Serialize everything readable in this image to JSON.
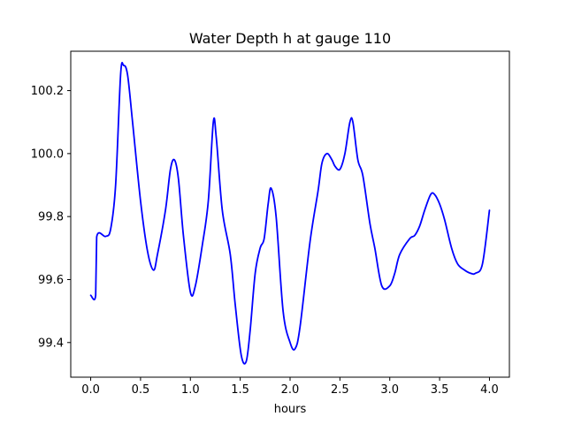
{
  "chart_data": {
    "type": "line",
    "title": "Water Depth h at gauge 110",
    "xlabel": "hours",
    "ylabel": "",
    "xlim": [
      -0.2,
      4.2
    ],
    "ylim": [
      99.29,
      100.325
    ],
    "xticks": [
      0.0,
      0.5,
      1.0,
      1.5,
      2.0,
      2.5,
      3.0,
      3.5,
      4.0
    ],
    "xtick_labels": [
      "0.0",
      "0.5",
      "1.0",
      "1.5",
      "2.0",
      "2.5",
      "3.0",
      "3.5",
      "4.0"
    ],
    "yticks": [
      99.4,
      99.6,
      99.8,
      100.0,
      100.2
    ],
    "ytick_labels": [
      "99.4",
      "99.6",
      "99.8",
      "100.0",
      "100.2"
    ],
    "grid": false,
    "series": [
      {
        "color": "#0000ff",
        "x": [
          0.0,
          0.05,
          0.06,
          0.15,
          0.2,
          0.25,
          0.3,
          0.33,
          0.37,
          0.42,
          0.5,
          0.57,
          0.63,
          0.67,
          0.75,
          0.8,
          0.84,
          0.88,
          0.93,
          1.0,
          1.05,
          1.12,
          1.18,
          1.23,
          1.26,
          1.32,
          1.4,
          1.45,
          1.51,
          1.56,
          1.6,
          1.65,
          1.7,
          1.74,
          1.78,
          1.81,
          1.86,
          1.93,
          2.0,
          2.05,
          2.1,
          2.2,
          2.28,
          2.32,
          2.37,
          2.42,
          2.45,
          2.5,
          2.55,
          2.6,
          2.63,
          2.68,
          2.73,
          2.8,
          2.85,
          2.92,
          3.0,
          3.05,
          3.1,
          3.2,
          3.25,
          3.3,
          3.35,
          3.41,
          3.45,
          3.5,
          3.55,
          3.62,
          3.68,
          3.75,
          3.81,
          3.86,
          3.93,
          4.0
        ],
        "y": [
          99.55,
          99.55,
          99.735,
          99.737,
          99.76,
          99.9,
          100.25,
          100.28,
          100.25,
          100.1,
          99.85,
          99.69,
          99.63,
          99.68,
          99.82,
          99.95,
          99.98,
          99.92,
          99.74,
          99.56,
          99.58,
          99.71,
          99.85,
          100.1,
          100.05,
          99.82,
          99.68,
          99.52,
          99.36,
          99.34,
          99.44,
          99.62,
          99.7,
          99.73,
          99.84,
          99.89,
          99.8,
          99.5,
          99.4,
          99.38,
          99.45,
          99.72,
          99.88,
          99.97,
          100.0,
          99.98,
          99.96,
          99.95,
          100.0,
          100.1,
          100.1,
          99.98,
          99.93,
          99.78,
          99.7,
          99.58,
          99.58,
          99.62,
          99.68,
          99.73,
          99.74,
          99.77,
          99.82,
          99.87,
          99.87,
          99.84,
          99.79,
          99.7,
          99.65,
          99.63,
          99.62,
          99.62,
          99.65,
          99.82
        ]
      }
    ]
  }
}
